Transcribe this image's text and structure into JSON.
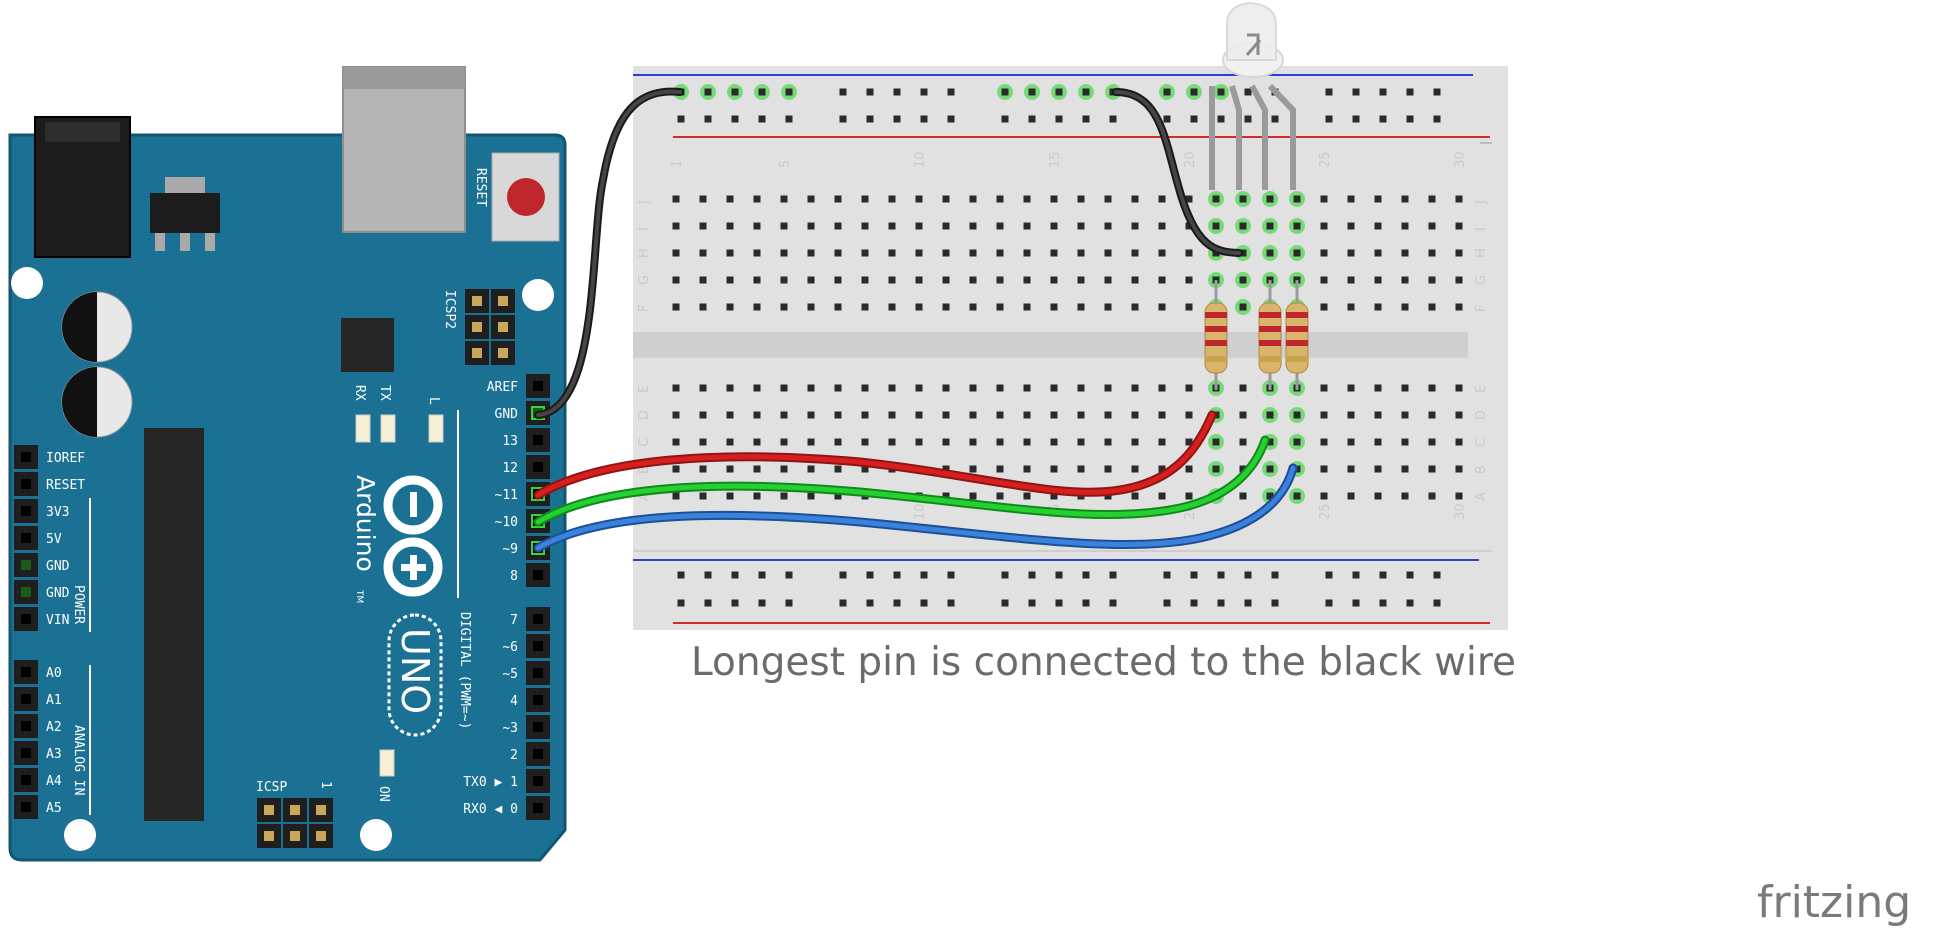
{
  "caption": "Longest pin is connected to the black wire",
  "watermark": "fritzing",
  "arduino": {
    "brand": "Arduino",
    "trademark": "TM",
    "model": "UNO",
    "reset_label": "RESET",
    "icsp2_label": "ICSP2",
    "icsp_label": "ICSP",
    "icsp_pin1": "1",
    "led_labels": [
      "RX",
      "TX",
      "L"
    ],
    "on_label": "ON",
    "digital_label": "DIGITAL (PWM=~)",
    "power_label": "POWER",
    "analog_label": "ANALOG IN",
    "digital_top_pins": [
      "AREF",
      "GND",
      "13",
      "12",
      "~11",
      "~10",
      "~9",
      "8"
    ],
    "digital_bottom_pins": [
      "7",
      "~6",
      "~5",
      "4",
      "~3",
      "2",
      "TX0 ▶ 1",
      "RX0 ◀ 0"
    ],
    "power_pins": [
      "IOREF",
      "RESET",
      "3V3",
      "5V",
      "GND",
      "GND",
      "VIN"
    ],
    "analog_pins": [
      "A0",
      "A1",
      "A2",
      "A3",
      "A4",
      "A5"
    ],
    "colors": {
      "board": "#1b7193",
      "board_dark": "#12566f",
      "reset_button": "#c0272d"
    }
  },
  "breadboard": {
    "column_numbers": [
      "1",
      "5",
      "10",
      "15",
      "20",
      "25",
      "30"
    ],
    "row_letters_top": [
      "J",
      "I",
      "H",
      "G",
      "F"
    ],
    "row_letters_bottom": [
      "E",
      "D",
      "C",
      "B",
      "A"
    ],
    "colors": {
      "body": "#e1e1e1",
      "rail_blue": "#2b3fd6",
      "rail_red": "#d22b2b",
      "active_hole": "#54d654"
    }
  },
  "wires": [
    {
      "name": "gnd-wire",
      "color": "#2b2b2b",
      "from": "GND",
      "to": "led-common"
    },
    {
      "name": "red-wire",
      "color": "#cf1f1f",
      "from": "~11",
      "to": "red-resistor"
    },
    {
      "name": "green-wire",
      "color": "#1fbf2a",
      "from": "~10",
      "to": "green-resistor"
    },
    {
      "name": "blue-wire",
      "color": "#2f74d0",
      "from": "~9",
      "to": "blue-resistor"
    }
  ],
  "led": {
    "type": "RGB LED, common cathode"
  }
}
